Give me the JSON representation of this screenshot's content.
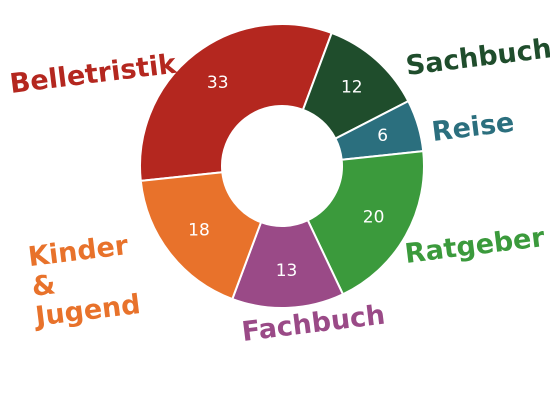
{
  "chart_data": {
    "type": "donut",
    "categories": [
      "Belletristik",
      "Sachbuch",
      "Reise",
      "Ratgeber",
      "Fachbuch",
      "Kinder & Jugend"
    ],
    "values": [
      33,
      12,
      6,
      20,
      13,
      18
    ],
    "colors": [
      "#b4271f",
      "#1f4d2c",
      "#2b6f7e",
      "#3b9a3c",
      "#9a4a87",
      "#e8722b"
    ]
  }
}
